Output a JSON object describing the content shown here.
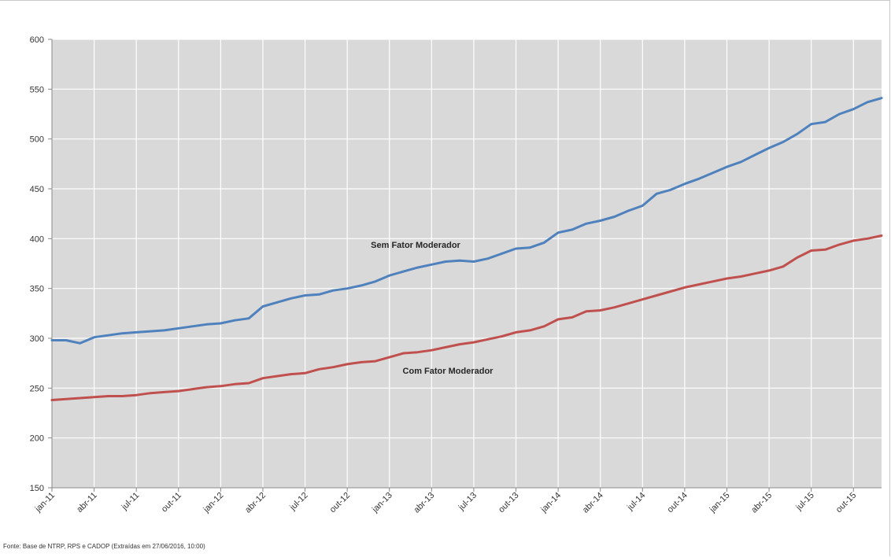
{
  "chart_data": {
    "type": "line",
    "ylim": [
      150,
      600
    ],
    "yticks": [
      150,
      200,
      250,
      300,
      350,
      400,
      450,
      500,
      550,
      600
    ],
    "x": [
      "jan-11",
      "fev-11",
      "mar-11",
      "abr-11",
      "mai-11",
      "jun-11",
      "jul-11",
      "ago-11",
      "set-11",
      "out-11",
      "nov-11",
      "dez-11",
      "jan-12",
      "fev-12",
      "mar-12",
      "abr-12",
      "mai-12",
      "jun-12",
      "jul-12",
      "ago-12",
      "set-12",
      "out-12",
      "nov-12",
      "dez-12",
      "jan-13",
      "fev-13",
      "mar-13",
      "abr-13",
      "mai-13",
      "jun-13",
      "jul-13",
      "ago-13",
      "set-13",
      "out-13",
      "nov-13",
      "dez-13",
      "jan-14",
      "fev-14",
      "mar-14",
      "abr-14",
      "mai-14",
      "jun-14",
      "jul-14",
      "ago-14",
      "set-14",
      "out-14",
      "nov-14",
      "dez-14",
      "jan-15",
      "fev-15",
      "mar-15",
      "abr-15",
      "mai-15",
      "jun-15",
      "jul-15",
      "ago-15",
      "set-15",
      "out-15",
      "nov-15",
      "dez-15"
    ],
    "tick_labels": [
      "jan-11",
      "abr-11",
      "jul-11",
      "out-11",
      "jan-12",
      "abr-12",
      "jul-12",
      "out-12",
      "jan-13",
      "abr-13",
      "jul-13",
      "out-13",
      "jan-14",
      "abr-14",
      "jul-14",
      "out-14",
      "jan-15",
      "abr-15",
      "jul-15",
      "out-15"
    ],
    "grid": true,
    "series": [
      {
        "name": "Sem Fator Moderador",
        "color": "#4f81bd",
        "values": [
          298,
          298,
          295,
          301,
          303,
          305,
          306,
          307,
          308,
          310,
          312,
          314,
          315,
          318,
          320,
          332,
          336,
          340,
          343,
          344,
          348,
          350,
          353,
          357,
          363,
          367,
          371,
          374,
          377,
          378,
          377,
          380,
          385,
          390,
          391,
          396,
          406,
          409,
          415,
          418,
          422,
          428,
          433,
          445,
          449,
          455,
          460,
          466,
          472,
          477,
          484,
          491,
          497,
          505,
          515,
          517,
          525,
          530,
          537,
          541
        ]
      },
      {
        "name": "Com Fator Moderador",
        "color": "#c0504d",
        "values": [
          238,
          239,
          240,
          241,
          242,
          242,
          243,
          245,
          246,
          247,
          249,
          251,
          252,
          254,
          255,
          260,
          262,
          264,
          265,
          269,
          271,
          274,
          276,
          277,
          281,
          285,
          286,
          288,
          291,
          294,
          296,
          299,
          302,
          306,
          308,
          312,
          319,
          321,
          327,
          328,
          331,
          335,
          339,
          343,
          347,
          351,
          354,
          357,
          360,
          362,
          365,
          368,
          372,
          381,
          388,
          389,
          394,
          398,
          400,
          403
        ]
      }
    ],
    "annotations": [
      "Sem Fator Moderador",
      "Com Fator Moderador"
    ]
  },
  "source": "Fonte: Base de NTRP, RPS e CADOP (Extraídas em 27/06/2016, 10:00)"
}
